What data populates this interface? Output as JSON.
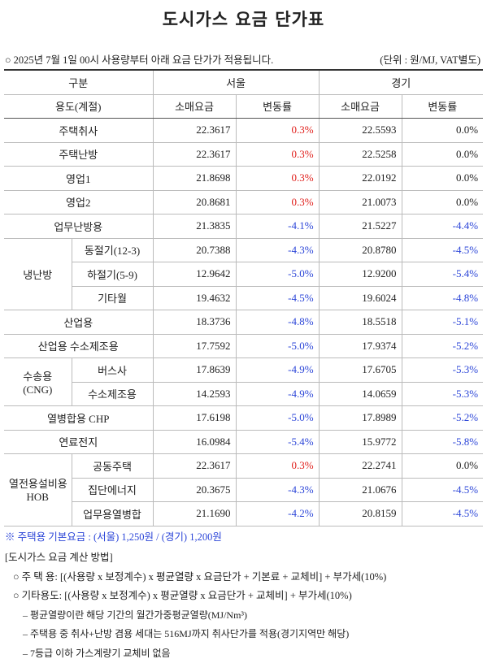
{
  "title": "도시가스 요금 단가표",
  "notice": "○ 2025년 7월 1일 00시 사용량부터 아래 요금 단가가 적용됩니다.",
  "unit": "(단위 : 원/MJ, VAT별도)",
  "table": {
    "header": {
      "category": "구분",
      "seoul": "서울",
      "gyeonggi": "경기",
      "usage": "용도(계절)",
      "columns": [
        "소매요금",
        "변동률",
        "소매요금",
        "변동률"
      ]
    },
    "body": [
      {
        "label": "주택취사",
        "cells": [
          "22.3617",
          "0.3%",
          "22.5593",
          "0.0%"
        ]
      },
      {
        "label": "주택난방",
        "cells": [
          "22.3617",
          "0.3%",
          "22.5258",
          "0.0%"
        ]
      },
      {
        "label": "영업1",
        "cells": [
          "21.8698",
          "0.3%",
          "22.0192",
          "0.0%"
        ]
      },
      {
        "label": "영업2",
        "cells": [
          "20.8681",
          "0.3%",
          "21.0073",
          "0.0%"
        ]
      },
      {
        "label": "업무난방용",
        "cells": [
          "21.3835",
          "-4.1%",
          "21.5227",
          "-4.4%"
        ]
      },
      {
        "group": [
          "냉난방"
        ],
        "rows": [
          {
            "label": "동절기(12-3)",
            "cells": [
              "20.7388",
              "-4.3%",
              "20.8780",
              "-4.5%"
            ]
          },
          {
            "label": "하절기(5-9)",
            "cells": [
              "12.9642",
              "-5.0%",
              "12.9200",
              "-5.4%"
            ]
          },
          {
            "label": "기타월",
            "cells": [
              "19.4632",
              "-4.5%",
              "19.6024",
              "-4.8%"
            ]
          }
        ]
      },
      {
        "label": "산업용",
        "cells": [
          "18.3736",
          "-4.8%",
          "18.5518",
          "-5.1%"
        ]
      },
      {
        "label": "산업용 수소제조용",
        "cells": [
          "17.7592",
          "-5.0%",
          "17.9374",
          "-5.2%"
        ]
      },
      {
        "group": [
          "수송용",
          "(CNG)"
        ],
        "rows": [
          {
            "label": "버스사",
            "cells": [
              "17.8639",
              "-4.9%",
              "17.6705",
              "-5.3%"
            ]
          },
          {
            "label": "수소제조용",
            "cells": [
              "14.2593",
              "-4.9%",
              "14.0659",
              "-5.3%"
            ]
          }
        ]
      },
      {
        "label": "열병합용 CHP",
        "cells": [
          "17.6198",
          "-5.0%",
          "17.8989",
          "-5.2%"
        ]
      },
      {
        "label": "연료전지",
        "cells": [
          "16.0984",
          "-5.4%",
          "15.9772",
          "-5.8%"
        ]
      },
      {
        "group": [
          "열전용설비용",
          "HOB"
        ],
        "rows": [
          {
            "label": "공동주택",
            "cells": [
              "22.3617",
              "0.3%",
              "22.2741",
              "0.0%"
            ]
          },
          {
            "label": "집단에너지",
            "cells": [
              "20.3675",
              "-4.3%",
              "21.0676",
              "-4.5%"
            ]
          },
          {
            "label": "업무용열병합",
            "cells": [
              "21.1690",
              "-4.2%",
              "20.8159",
              "-4.5%"
            ]
          }
        ]
      }
    ]
  },
  "footnote": "※ 주택용 기본요금 : (서울) 1,250원 / (경기) 1,200원",
  "calc": {
    "title": "[도시가스 요금 계산 방법]",
    "formulas": [
      "○ 주 택 용: [(사용량 x 보정계수) x 평균열량 x 요금단가 + 기본료 + 교체비] + 부가세(10%)",
      "○ 기타용도: [(사용량 x 보정계수) x 평균열량 x 요금단가 + 교체비] + 부가세(10%)"
    ],
    "notes": [
      "– 평균열량이란 해당 기간의 월간가중평균열량(MJ/Nm³)",
      "– 주택용 중 취사+난방 겸용 세대는 516MJ까지 취사단가를 적용(경기지역만 해당)",
      "– 7등급 이하 가스계량기 교체비 없음"
    ]
  }
}
